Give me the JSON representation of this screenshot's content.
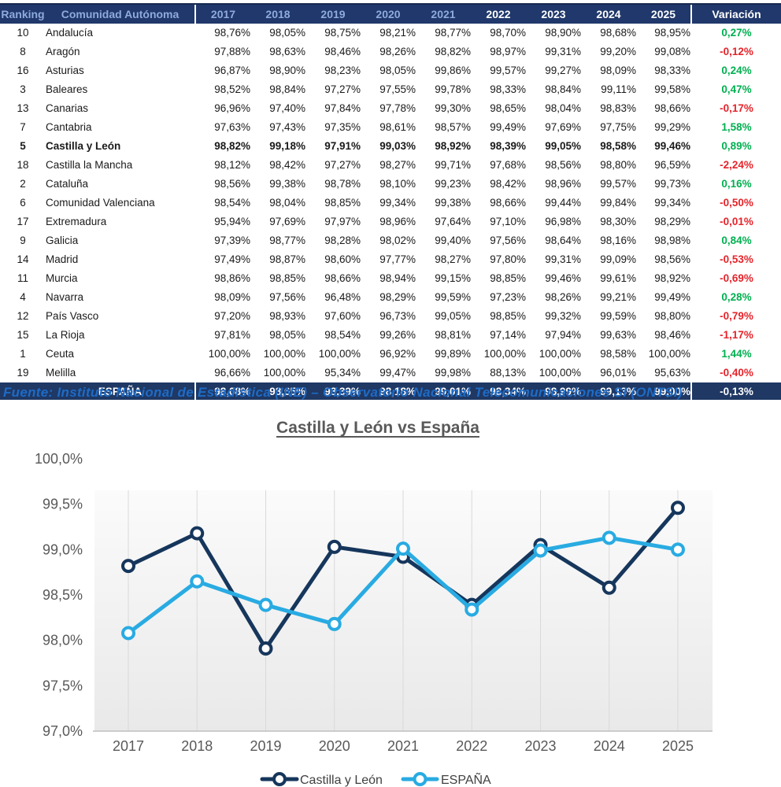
{
  "table": {
    "headers": [
      "Ranking",
      "Comunidad Autónoma",
      "2017",
      "2018",
      "2019",
      "2020",
      "2021",
      "2022",
      "2023",
      "2024",
      "2025",
      "Variación"
    ],
    "rows": [
      {
        "rank": "10",
        "name": "Andalucía",
        "values": [
          "98,76%",
          "98,05%",
          "98,75%",
          "98,21%",
          "98,77%",
          "98,70%",
          "98,90%",
          "98,68%",
          "98,95%"
        ],
        "variation": "0,27%",
        "bold": false
      },
      {
        "rank": "8",
        "name": "Aragón",
        "values": [
          "97,88%",
          "98,63%",
          "98,46%",
          "98,26%",
          "98,82%",
          "98,97%",
          "99,31%",
          "99,20%",
          "99,08%"
        ],
        "variation": "-0,12%",
        "bold": false
      },
      {
        "rank": "16",
        "name": "Asturias",
        "values": [
          "96,87%",
          "98,90%",
          "98,23%",
          "98,05%",
          "99,86%",
          "99,57%",
          "99,27%",
          "98,09%",
          "98,33%"
        ],
        "variation": "0,24%",
        "bold": false
      },
      {
        "rank": "3",
        "name": "Baleares",
        "values": [
          "98,52%",
          "98,84%",
          "97,27%",
          "97,55%",
          "99,78%",
          "98,33%",
          "98,84%",
          "99,11%",
          "99,58%"
        ],
        "variation": "0,47%",
        "bold": false
      },
      {
        "rank": "13",
        "name": "Canarias",
        "values": [
          "96,96%",
          "97,40%",
          "97,84%",
          "97,78%",
          "99,30%",
          "98,65%",
          "98,04%",
          "98,83%",
          "98,66%"
        ],
        "variation": "-0,17%",
        "bold": false
      },
      {
        "rank": "7",
        "name": "Cantabria",
        "values": [
          "97,63%",
          "97,43%",
          "97,35%",
          "98,61%",
          "98,57%",
          "99,49%",
          "97,69%",
          "97,75%",
          "99,29%"
        ],
        "variation": "1,58%",
        "bold": false
      },
      {
        "rank": "5",
        "name": "Castilla y León",
        "values": [
          "98,82%",
          "99,18%",
          "97,91%",
          "99,03%",
          "98,92%",
          "98,39%",
          "99,05%",
          "98,58%",
          "99,46%"
        ],
        "variation": "0,89%",
        "bold": true
      },
      {
        "rank": "18",
        "name": "Castilla la Mancha",
        "values": [
          "98,12%",
          "98,42%",
          "97,27%",
          "98,27%",
          "99,71%",
          "97,68%",
          "98,56%",
          "98,80%",
          "96,59%"
        ],
        "variation": "-2,24%",
        "bold": false
      },
      {
        "rank": "2",
        "name": "Cataluña",
        "values": [
          "98,56%",
          "99,38%",
          "98,78%",
          "98,10%",
          "99,23%",
          "98,42%",
          "98,96%",
          "99,57%",
          "99,73%"
        ],
        "variation": "0,16%",
        "bold": false
      },
      {
        "rank": "6",
        "name": "Comunidad Valenciana",
        "values": [
          "98,54%",
          "98,04%",
          "98,85%",
          "99,34%",
          "99,38%",
          "98,66%",
          "99,44%",
          "99,84%",
          "99,34%"
        ],
        "variation": "-0,50%",
        "bold": false
      },
      {
        "rank": "17",
        "name": "Extremadura",
        "values": [
          "95,94%",
          "97,69%",
          "97,97%",
          "98,96%",
          "97,64%",
          "97,10%",
          "96,98%",
          "98,30%",
          "98,29%"
        ],
        "variation": "-0,01%",
        "bold": false
      },
      {
        "rank": "9",
        "name": "Galicia",
        "values": [
          "97,39%",
          "98,77%",
          "98,28%",
          "98,02%",
          "99,40%",
          "97,56%",
          "98,64%",
          "98,16%",
          "98,98%"
        ],
        "variation": "0,84%",
        "bold": false
      },
      {
        "rank": "14",
        "name": "Madrid",
        "values": [
          "97,49%",
          "98,87%",
          "98,60%",
          "97,77%",
          "98,27%",
          "97,80%",
          "99,31%",
          "99,09%",
          "98,56%"
        ],
        "variation": "-0,53%",
        "bold": false
      },
      {
        "rank": "11",
        "name": "Murcia",
        "values": [
          "98,86%",
          "98,85%",
          "98,66%",
          "98,94%",
          "99,15%",
          "98,85%",
          "99,46%",
          "99,61%",
          "98,92%"
        ],
        "variation": "-0,69%",
        "bold": false
      },
      {
        "rank": "4",
        "name": "Navarra",
        "values": [
          "98,09%",
          "97,56%",
          "96,48%",
          "98,29%",
          "99,59%",
          "97,23%",
          "98,26%",
          "99,21%",
          "99,49%"
        ],
        "variation": "0,28%",
        "bold": false
      },
      {
        "rank": "12",
        "name": "País Vasco",
        "values": [
          "97,20%",
          "98,93%",
          "97,60%",
          "96,73%",
          "99,05%",
          "98,85%",
          "99,32%",
          "99,59%",
          "98,80%"
        ],
        "variation": "-0,79%",
        "bold": false
      },
      {
        "rank": "15",
        "name": "La Rioja",
        "values": [
          "97,81%",
          "98,05%",
          "98,54%",
          "99,26%",
          "98,81%",
          "97,14%",
          "97,94%",
          "99,63%",
          "98,46%"
        ],
        "variation": "-1,17%",
        "bold": false
      },
      {
        "rank": "1",
        "name": "Ceuta",
        "values": [
          "100,00%",
          "100,00%",
          "100,00%",
          "96,92%",
          "99,89%",
          "100,00%",
          "100,00%",
          "98,58%",
          "100,00%"
        ],
        "variation": "1,44%",
        "bold": false
      },
      {
        "rank": "19",
        "name": "Melilla",
        "values": [
          "96,66%",
          "100,00%",
          "95,34%",
          "99,47%",
          "99,98%",
          "88,13%",
          "100,00%",
          "96,01%",
          "95,63%"
        ],
        "variation": "-0,40%",
        "bold": false
      }
    ],
    "footer": {
      "name": "ESPAÑA",
      "values": [
        "98,08%",
        "98,65%",
        "98,39%",
        "98,18%",
        "99,01%",
        "98,34%",
        "98,99%",
        "99,13%",
        "99,00%"
      ],
      "variation": "-0,13%"
    }
  },
  "source": {
    "text": "Fuente: Instituto Nacional de Estadística (INE) – Observatorio Nacional Telecomunicaciones SI (ONTSI)"
  },
  "chart_data": {
    "type": "line",
    "title": "Castilla y León vs España",
    "x": [
      "2017",
      "2018",
      "2019",
      "2020",
      "2021",
      "2022",
      "2023",
      "2024",
      "2025"
    ],
    "series": [
      {
        "name": "Castilla y León",
        "color": "#16365C",
        "values": [
          98.82,
          99.18,
          97.91,
          99.03,
          98.92,
          98.39,
          99.05,
          98.58,
          99.46
        ]
      },
      {
        "name": "ESPAÑA",
        "color": "#29ABE2",
        "values": [
          98.08,
          98.65,
          98.39,
          98.18,
          99.01,
          98.34,
          98.99,
          99.13,
          99.0
        ]
      }
    ],
    "ylim": [
      97.0,
      100.0
    ],
    "ytick_step": 0.5,
    "ytick_labels": [
      "97,0%",
      "97,5%",
      "98,0%",
      "98,5%",
      "99,0%",
      "99,5%",
      "100,0%"
    ],
    "grid": "vertical-only",
    "legend_position": "bottom"
  },
  "colors": {
    "header_navy": "#20386B",
    "footer_navy": "#1F3864",
    "header_text_light": "#8FAADC",
    "row_shade": "#D9E1F2",
    "positive": "#00B050",
    "negative": "#E5242B",
    "footer_gold": "#FFC000",
    "source_blue": "#1F6BC5",
    "title_gray": "#595959",
    "grid_gray": "#D9D9D9",
    "axis_gray": "#BFBFBF"
  }
}
